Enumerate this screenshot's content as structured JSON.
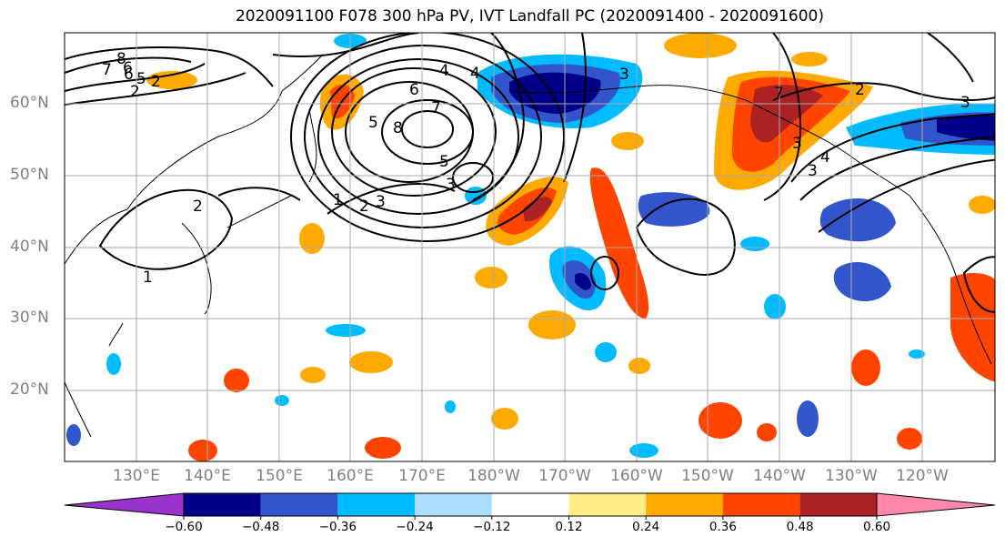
{
  "title": "2020091100 F078 300 hPa PV, IVT Landfall PC (2020091400 - 2020091600)",
  "lat_labels": [
    "60°N",
    "50°N",
    "40°N",
    "30°N",
    "20°N"
  ],
  "lon_labels": [
    "130°E",
    "140°E",
    "150°E",
    "160°E",
    "170°E",
    "180°W",
    "170°W",
    "160°W",
    "150°W",
    "140°W",
    "130°W",
    "120°W"
  ],
  "colorbar": {
    "ticks": [
      "−0.60",
      "−0.48",
      "−0.36",
      "−0.24",
      "−0.12",
      "0.12",
      "0.24",
      "0.36",
      "0.48",
      "0.60"
    ],
    "colors": [
      "#9933cc",
      "#000088",
      "#3355cc",
      "#00bbff",
      "#aaddff",
      "#ffffff",
      "#ffee88",
      "#ffaa00",
      "#ff4400",
      "#aa2222",
      "#ff88aa"
    ]
  },
  "contour_labels": [
    "8",
    "7",
    "6",
    "5",
    "2",
    "4",
    "6",
    "7",
    "8",
    "5",
    "3",
    "1",
    "2",
    "3",
    "3",
    "5",
    "2",
    "7",
    "3",
    "3",
    "4",
    "3",
    "2",
    "1",
    "6",
    "4",
    "2"
  ]
}
